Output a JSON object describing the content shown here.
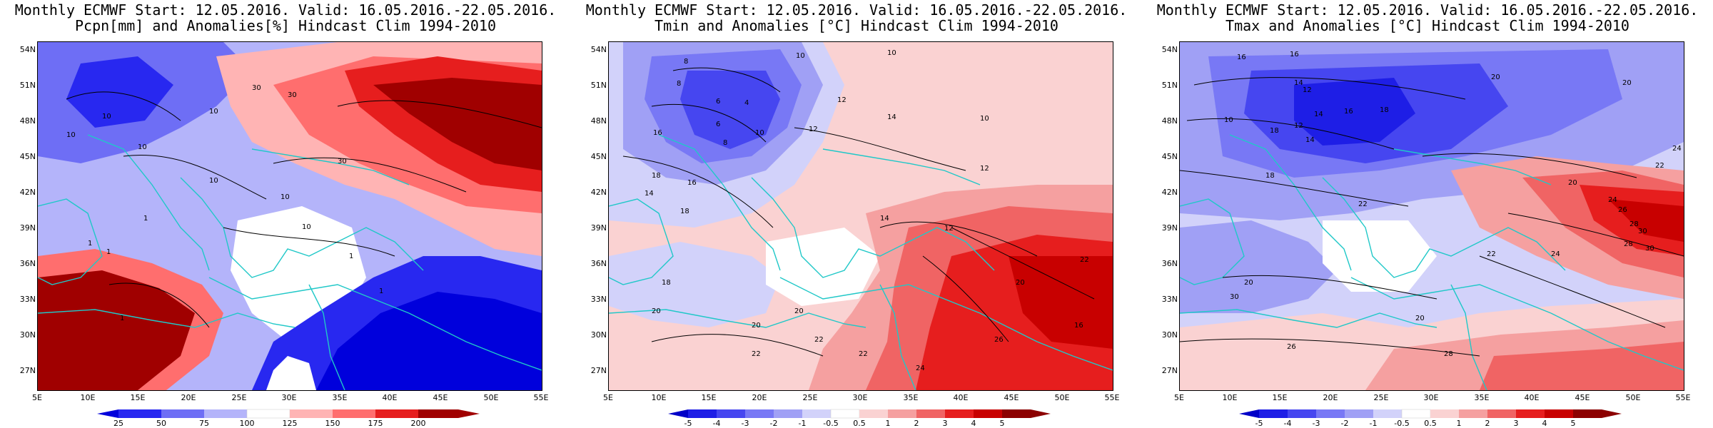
{
  "panels": [
    {
      "title_line1": "Monthly ECMWF Start: 12.05.2016. Valid: 16.05.2016.-22.05.2016.",
      "title_line2": "Pcpn[mm] and Anomalies[%] Hindcast Clim 1994-2010",
      "colorbar_ticks": [
        "25",
        "50",
        "75",
        "100",
        "125",
        "150",
        "175",
        "200"
      ],
      "colors": [
        "#0000dc",
        "#2828f0",
        "#6e6ef5",
        "#b4b4fa",
        "#ffffff",
        "#ffb4b4",
        "#ff6e6e",
        "#e61e1e",
        "#a00000"
      ],
      "contour_labels": [
        "10",
        "10",
        "10",
        "10",
        "10",
        "30",
        "30",
        "30",
        "10",
        "10",
        "1",
        "1",
        "1",
        "1",
        "1",
        "1"
      ]
    },
    {
      "title_line1": "Monthly ECMWF Start: 12.05.2016. Valid: 16.05.2016.-22.05.2016.",
      "title_line2": "Tmin and Anomalies [°C] Hindcast Clim 1994-2010",
      "colorbar_ticks": [
        "-5",
        "-4",
        "-3",
        "-2",
        "-1",
        "-0.5",
        "0.5",
        "1",
        "2",
        "3",
        "4",
        "5"
      ],
      "colors": [
        "#0000c8",
        "#1e1ee6",
        "#4646f0",
        "#7878f5",
        "#a0a0f5",
        "#d2d2fa",
        "#ffffff",
        "#fad2d2",
        "#f5a0a0",
        "#f06464",
        "#e61e1e",
        "#c80000",
        "#8c0000"
      ],
      "contour_labels": [
        "8",
        "10",
        "10",
        "12",
        "14",
        "12",
        "8",
        "6",
        "4",
        "6",
        "8",
        "10",
        "12",
        "16",
        "18",
        "16",
        "14",
        "18",
        "20",
        "20",
        "22",
        "20",
        "22",
        "18",
        "24",
        "26",
        "22",
        "20",
        "22",
        "16",
        "14",
        "12",
        "10"
      ]
    },
    {
      "title_line1": "Monthly ECMWF Start: 12.05.2016. Valid: 16.05.2016.-22.05.2016.",
      "title_line2": "Tmax and Anomalies [°C] Hindcast Clim 1994-2010",
      "colorbar_ticks": [
        "-5",
        "-4",
        "-3",
        "-2",
        "-1",
        "-0.5",
        "0.5",
        "1",
        "2",
        "3",
        "4",
        "5"
      ],
      "colors": [
        "#0000c8",
        "#1e1ee6",
        "#4646f0",
        "#7878f5",
        "#a0a0f5",
        "#d2d2fa",
        "#ffffff",
        "#fad2d2",
        "#f5a0a0",
        "#f06464",
        "#e61e1e",
        "#c80000",
        "#8c0000"
      ],
      "contour_labels": [
        "16",
        "16",
        "14",
        "12",
        "14",
        "18",
        "16",
        "18",
        "14",
        "12",
        "10",
        "18",
        "20",
        "20",
        "24",
        "22",
        "20",
        "24",
        "26",
        "28",
        "30",
        "28",
        "30",
        "22",
        "20",
        "30",
        "28",
        "26",
        "24",
        "22",
        "20"
      ]
    }
  ],
  "lat_labels": [
    "54N",
    "51N",
    "48N",
    "45N",
    "42N",
    "39N",
    "36N",
    "33N",
    "30N",
    "27N"
  ],
  "lon_labels": [
    "5E",
    "10E",
    "15E",
    "20E",
    "25E",
    "30E",
    "35E",
    "40E",
    "45E",
    "50E",
    "55E"
  ],
  "coast_color": "#20c8c8"
}
